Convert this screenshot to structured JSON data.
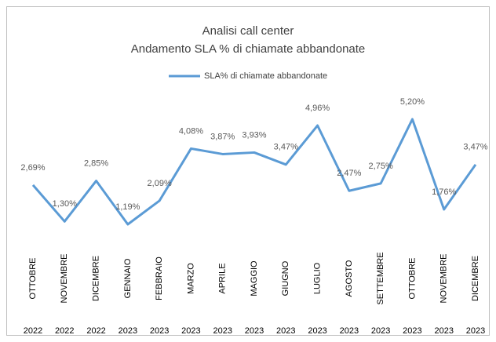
{
  "chart_data": {
    "type": "line",
    "title": "Analisi call center",
    "subtitle": "Andamento SLA % di chiamate abbandonate",
    "categories": [
      "OTTOBRE",
      "NOVEMBRE",
      "DICEMBRE",
      "GENNAIO",
      "FEBBRAIO",
      "MARZO",
      "APRILE",
      "MAGGIO",
      "GIUGNO",
      "LUGLIO",
      "AGOSTO",
      "SETTEMBRE",
      "OTTOBRE",
      "NOVEMBRE",
      "DICEMBRE"
    ],
    "years": [
      "2022",
      "2022",
      "2022",
      "2023",
      "2023",
      "2023",
      "2023",
      "2023",
      "2023",
      "2023",
      "2023",
      "2023",
      "2023",
      "2023",
      "2023"
    ],
    "series": [
      {
        "name": "SLA% di chiamate abbandonate",
        "color": "#5b9bd5",
        "values": [
          2.69,
          1.3,
          2.85,
          1.19,
          2.09,
          4.08,
          3.87,
          3.93,
          3.47,
          4.96,
          2.47,
          2.75,
          5.2,
          1.76,
          3.47
        ],
        "value_labels": [
          "2,69%",
          "1,30%",
          "2,85%",
          "1,19%",
          "2,09%",
          "4,08%",
          "3,87%",
          "3,93%",
          "3,47%",
          "4,96%",
          "2,47%",
          "2,75%",
          "5,20%",
          "1,76%",
          "3,47%"
        ]
      }
    ],
    "legend": "top"
  }
}
